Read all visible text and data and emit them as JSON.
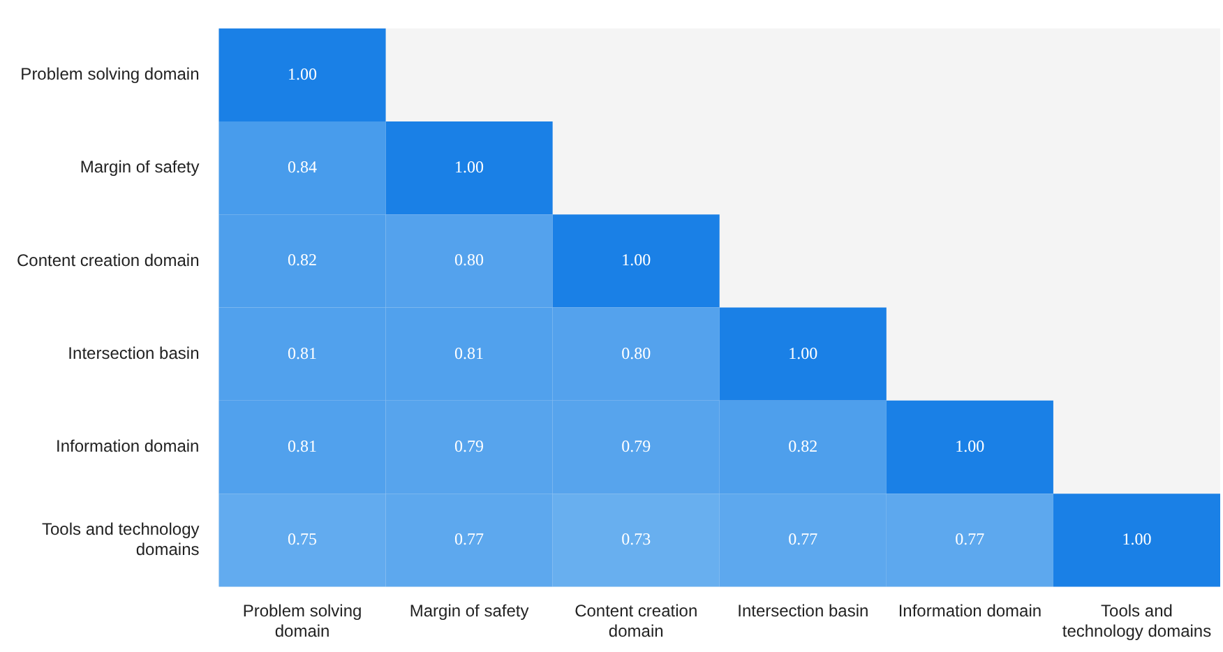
{
  "chart_data": {
    "type": "heatmap",
    "categories": [
      "Problem solving domain",
      "Margin of safety",
      "Content creation domain",
      "Intersection basin",
      "Information domain",
      "Tools and technology domains"
    ],
    "y_categories": [
      "Problem solving domain",
      "Margin of safety",
      "Content creation domain",
      "Intersection basin",
      "Information domain",
      "Tools and technology domains"
    ],
    "cells": [
      [
        1.0,
        null,
        null,
        null,
        null,
        null
      ],
      [
        0.84,
        1.0,
        null,
        null,
        null,
        null
      ],
      [
        0.82,
        0.8,
        1.0,
        null,
        null,
        null
      ],
      [
        0.81,
        0.81,
        0.8,
        1.0,
        null,
        null
      ],
      [
        0.81,
        0.79,
        0.79,
        0.82,
        1.0,
        null
      ],
      [
        0.75,
        0.77,
        0.73,
        0.77,
        0.77,
        1.0
      ]
    ],
    "cell_labels": [
      [
        "1.00",
        null,
        null,
        null,
        null,
        null
      ],
      [
        "0.84",
        "1.00",
        null,
        null,
        null,
        null
      ],
      [
        "0.82",
        "0.80",
        "1.00",
        null,
        null,
        null
      ],
      [
        "0.81",
        "0.81",
        "0.80",
        "1.00",
        null,
        null
      ],
      [
        "0.81",
        "0.79",
        "0.79",
        "0.82",
        "1.00",
        null
      ],
      [
        "0.75",
        "0.77",
        "0.73",
        "0.77",
        "0.77",
        "1.00"
      ]
    ],
    "data_labels": true
  }
}
